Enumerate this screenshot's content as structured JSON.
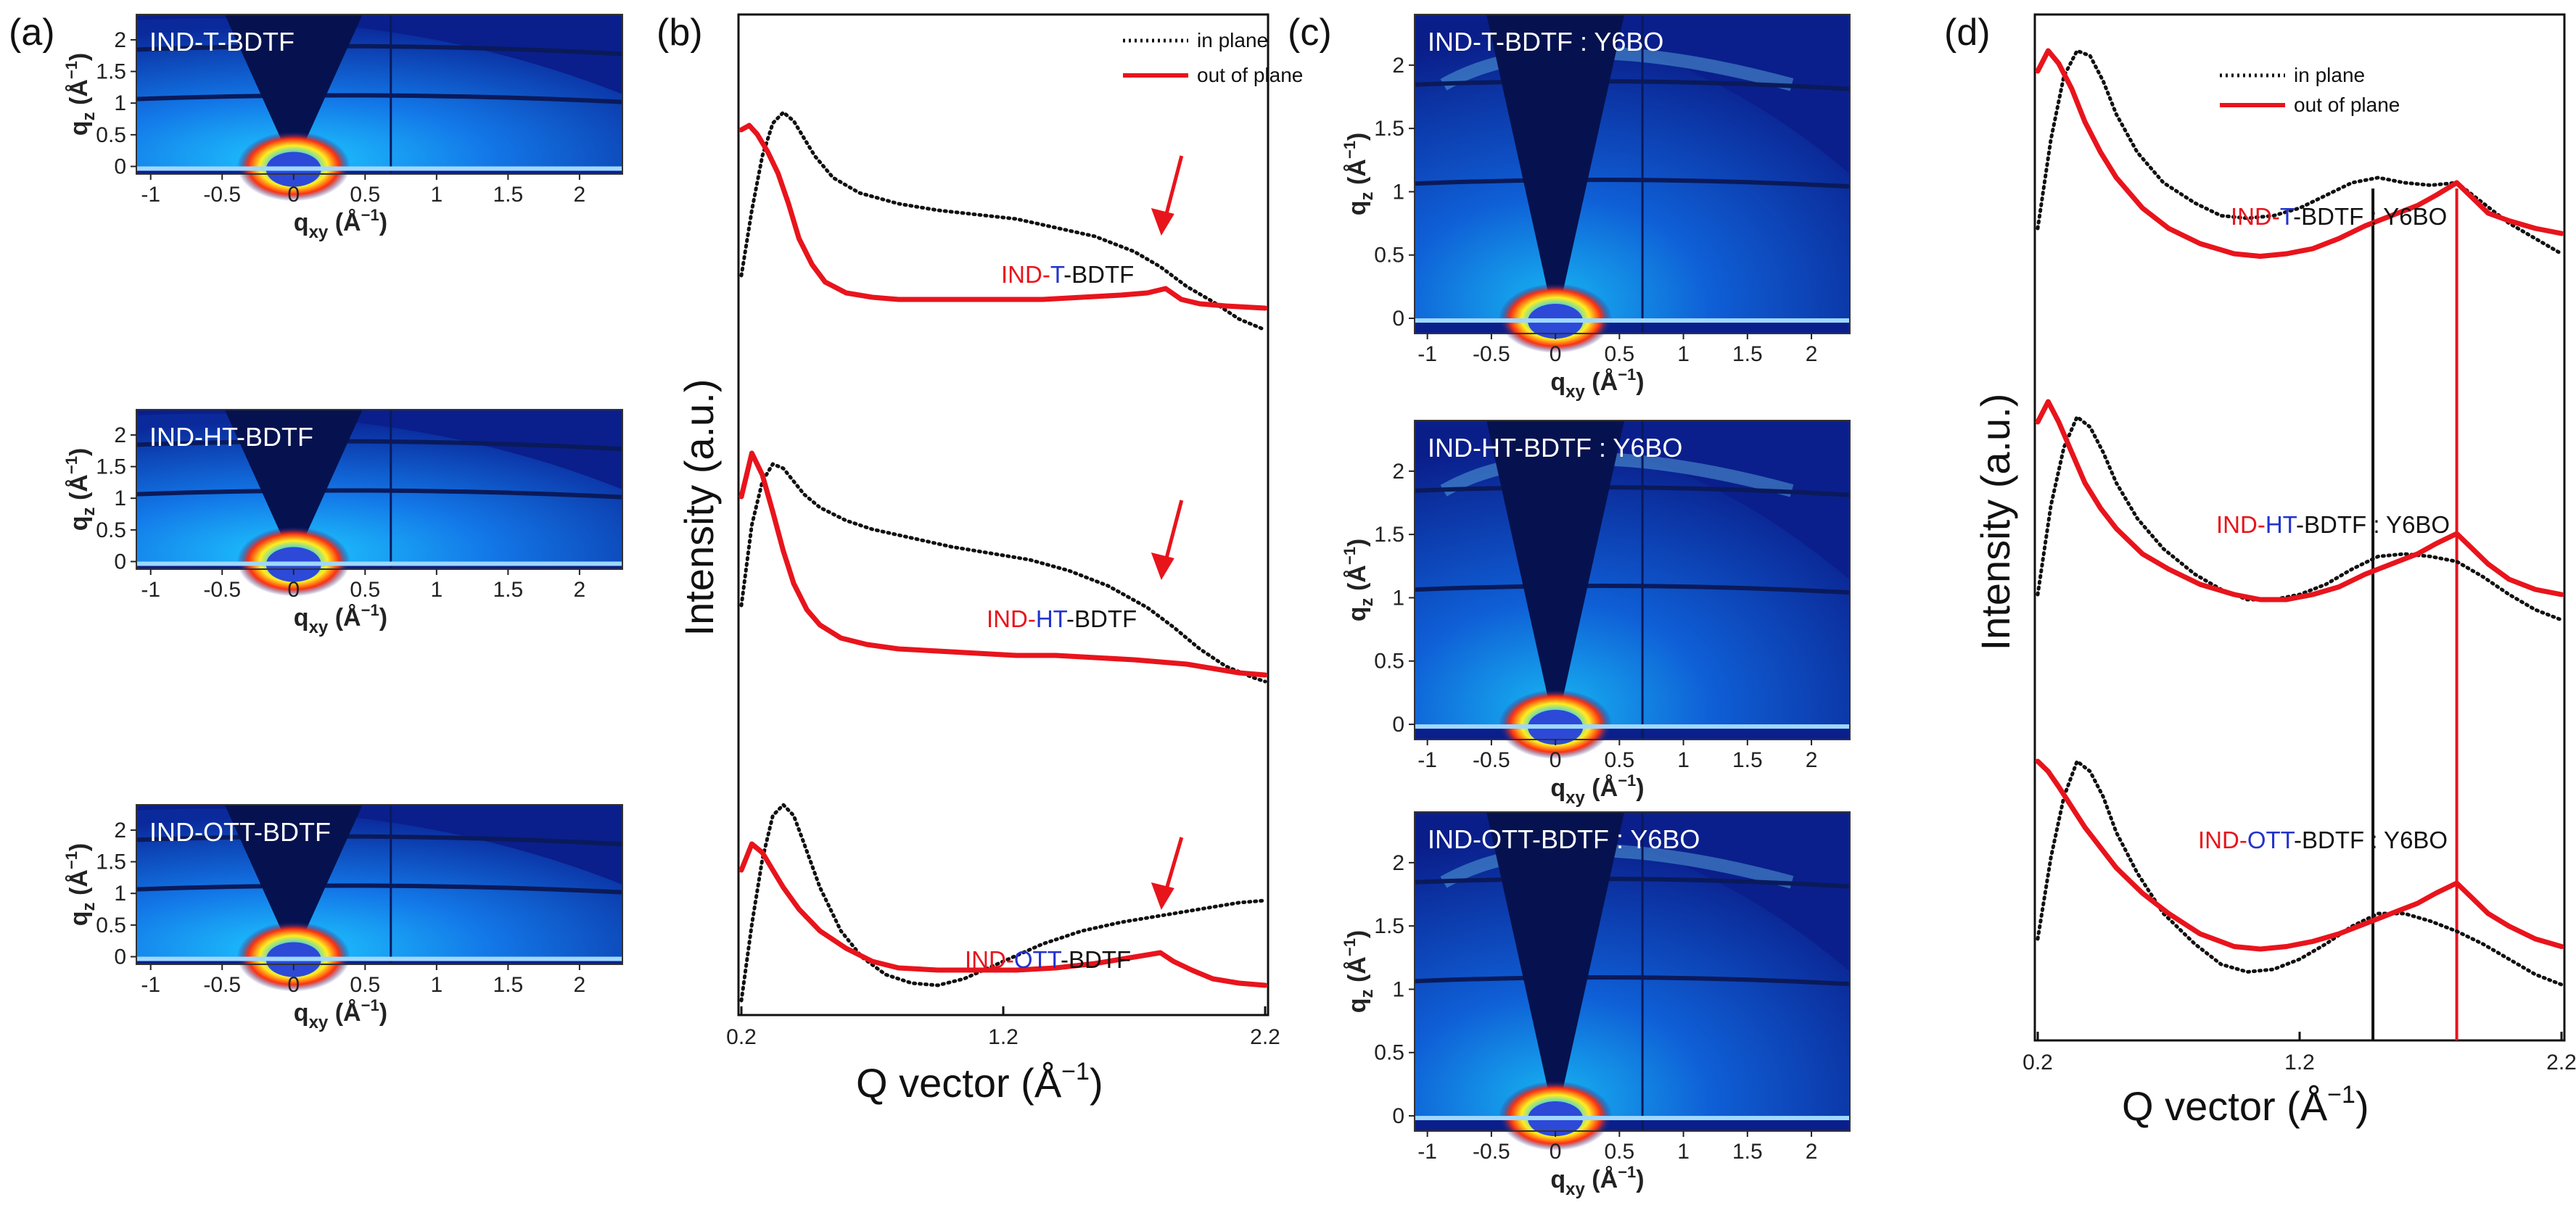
{
  "figure": {
    "panel_labels": [
      "(a)",
      "(b)",
      "(c)",
      "(d)"
    ]
  },
  "colors": {
    "in_plane": "#111111",
    "out_of_plane": "#e8141c",
    "label_red": "#e8141c",
    "label_blue": "#2233cc",
    "label_black": "#111111",
    "map_background": "#0a1f8c",
    "map_shadow": "#06124f"
  },
  "chart_data": [
    {
      "panel": "(a)",
      "type": "heatmap",
      "xlabel_main": "q",
      "xlabel_sub": "xy",
      "xlabel_unit": "(Å",
      "xlabel_unit_exp": "−1",
      "xlabel_unit_close": ")",
      "ylabel_main": "q",
      "ylabel_sub": "z",
      "ylabel_unit": "(Å",
      "ylabel_unit_exp": "−1",
      "ylabel_unit_close": ")",
      "xlim": [
        -1.1,
        2.3
      ],
      "ylim": [
        -0.12,
        2.4
      ],
      "x_ticks": [
        "-1",
        "-0.5",
        "0",
        "0.5",
        "1",
        "1.5",
        "2"
      ],
      "y_ticks": [
        "0",
        "0.5",
        "1",
        "1.5",
        "2"
      ],
      "maps": [
        {
          "title": "IND-T-BDTF"
        },
        {
          "title": "IND-HT-BDTF"
        },
        {
          "title": "IND-OTT-BDTF"
        }
      ]
    },
    {
      "panel": "(b)",
      "type": "line",
      "xlabel": "Q vector (Å",
      "xlabel_exp": "−1",
      "xlabel_close": ")",
      "ylabel": "Intensity (a.u.)",
      "x_ticks": [
        "0.2",
        "1.2",
        "2.2"
      ],
      "xlim": [
        0.2,
        2.2
      ],
      "legend": {
        "position": "top-right",
        "entries": [
          "in plane",
          "out of plane"
        ]
      },
      "curve_labels": [
        [
          {
            "text": "IND-",
            "color": "red"
          },
          {
            "text": "T",
            "color": "blue"
          },
          {
            "text": "-BDTF",
            "color": "black"
          }
        ],
        [
          {
            "text": "IND-",
            "color": "red"
          },
          {
            "text": "HT",
            "color": "blue"
          },
          {
            "text": "-BDTF",
            "color": "black"
          }
        ],
        [
          {
            "text": "IND-",
            "color": "red"
          },
          {
            "text": "OTT",
            "color": "blue"
          },
          {
            "text": "-BDTF",
            "color": "black"
          }
        ]
      ],
      "arrow_q": 1.82,
      "series": [
        {
          "name": "in plane",
          "group": 0,
          "style": "dotted",
          "x": [
            0.2,
            0.24,
            0.28,
            0.32,
            0.36,
            0.4,
            0.44,
            0.48,
            0.55,
            0.65,
            0.8,
            0.95,
            1.1,
            1.25,
            1.4,
            1.55,
            1.7,
            1.8,
            1.9,
            2.0,
            2.1,
            2.2
          ],
          "y": [
            0.25,
            0.55,
            0.8,
            0.95,
            1.0,
            0.96,
            0.88,
            0.8,
            0.7,
            0.63,
            0.58,
            0.55,
            0.53,
            0.51,
            0.47,
            0.43,
            0.36,
            0.29,
            0.2,
            0.13,
            0.05,
            0.0
          ]
        },
        {
          "name": "out of plane",
          "group": 0,
          "style": "solid",
          "x": [
            0.2,
            0.23,
            0.26,
            0.3,
            0.34,
            0.38,
            0.42,
            0.47,
            0.52,
            0.6,
            0.7,
            0.8,
            0.9,
            1.05,
            1.2,
            1.35,
            1.5,
            1.65,
            1.75,
            1.82,
            1.88,
            1.95,
            2.05,
            2.2
          ],
          "y": [
            0.92,
            0.94,
            0.9,
            0.82,
            0.72,
            0.58,
            0.42,
            0.3,
            0.22,
            0.17,
            0.15,
            0.14,
            0.14,
            0.14,
            0.14,
            0.14,
            0.15,
            0.16,
            0.17,
            0.19,
            0.14,
            0.12,
            0.11,
            0.1
          ]
        },
        {
          "name": "in plane",
          "group": 1,
          "style": "dotted",
          "x": [
            0.2,
            0.24,
            0.28,
            0.32,
            0.36,
            0.4,
            0.44,
            0.5,
            0.6,
            0.7,
            0.85,
            1.0,
            1.15,
            1.3,
            1.45,
            1.6,
            1.75,
            1.85,
            1.95,
            2.05,
            2.15,
            2.2
          ],
          "y": [
            0.35,
            0.72,
            0.92,
            1.0,
            0.98,
            0.92,
            0.86,
            0.8,
            0.74,
            0.7,
            0.66,
            0.62,
            0.59,
            0.56,
            0.51,
            0.44,
            0.34,
            0.25,
            0.15,
            0.07,
            0.02,
            0.0
          ]
        },
        {
          "name": "out of plane",
          "group": 1,
          "style": "solid",
          "x": [
            0.2,
            0.24,
            0.28,
            0.32,
            0.36,
            0.4,
            0.45,
            0.5,
            0.58,
            0.68,
            0.8,
            0.95,
            1.1,
            1.25,
            1.4,
            1.55,
            1.7,
            1.8,
            1.9,
            2.0,
            2.1,
            2.2
          ],
          "y": [
            0.85,
            1.05,
            0.95,
            0.78,
            0.6,
            0.45,
            0.33,
            0.26,
            0.2,
            0.17,
            0.15,
            0.14,
            0.13,
            0.12,
            0.12,
            0.11,
            0.1,
            0.09,
            0.08,
            0.06,
            0.04,
            0.03
          ]
        },
        {
          "name": "in plane",
          "group": 2,
          "style": "dotted",
          "x": [
            0.2,
            0.24,
            0.28,
            0.32,
            0.36,
            0.4,
            0.44,
            0.5,
            0.58,
            0.66,
            0.75,
            0.85,
            0.95,
            1.05,
            1.2,
            1.35,
            1.5,
            1.65,
            1.8,
            1.95,
            2.1,
            2.2
          ],
          "y": [
            0.1,
            0.45,
            0.75,
            0.95,
            1.0,
            0.95,
            0.82,
            0.62,
            0.42,
            0.3,
            0.22,
            0.18,
            0.17,
            0.2,
            0.28,
            0.36,
            0.42,
            0.46,
            0.49,
            0.52,
            0.55,
            0.56
          ]
        },
        {
          "name": "out of plane",
          "group": 2,
          "style": "solid",
          "x": [
            0.2,
            0.24,
            0.28,
            0.32,
            0.36,
            0.42,
            0.5,
            0.6,
            0.7,
            0.8,
            0.95,
            1.1,
            1.25,
            1.4,
            1.55,
            1.7,
            1.8,
            1.85,
            1.92,
            2.0,
            2.1,
            2.2
          ],
          "y": [
            0.7,
            0.82,
            0.78,
            0.7,
            0.62,
            0.52,
            0.42,
            0.34,
            0.28,
            0.25,
            0.24,
            0.24,
            0.24,
            0.25,
            0.27,
            0.3,
            0.32,
            0.28,
            0.24,
            0.2,
            0.18,
            0.17
          ]
        }
      ]
    },
    {
      "panel": "(c)",
      "type": "heatmap",
      "xlabel_main": "q",
      "xlabel_sub": "xy",
      "xlabel_unit": "(Å",
      "xlabel_unit_exp": "−1",
      "xlabel_unit_close": ")",
      "ylabel_main": "q",
      "ylabel_sub": "z",
      "ylabel_unit": "(Å",
      "ylabel_unit_exp": "−1",
      "ylabel_unit_close": ")",
      "xlim": [
        -1.1,
        2.3
      ],
      "ylim": [
        -0.12,
        2.4
      ],
      "x_ticks": [
        "-1",
        "-0.5",
        "0",
        "0.5",
        "1",
        "1.5",
        "2"
      ],
      "y_ticks": [
        "0",
        "0.5",
        "1",
        "1.5",
        "2"
      ],
      "maps": [
        {
          "title": "IND-T-BDTF : Y6BO"
        },
        {
          "title": "IND-HT-BDTF : Y6BO"
        },
        {
          "title": "IND-OTT-BDTF : Y6BO"
        }
      ]
    },
    {
      "panel": "(d)",
      "type": "line",
      "xlabel": "Q vector (Å",
      "xlabel_exp": "−1",
      "xlabel_close": ")",
      "ylabel": "Intensity (a.u.)",
      "x_ticks": [
        "0.2",
        "1.2",
        "2.2"
      ],
      "xlim": [
        0.2,
        2.2
      ],
      "legend": {
        "position": "top-right",
        "entries": [
          "in plane",
          "out of plane"
        ]
      },
      "vlines": [
        {
          "x": 1.48,
          "color": "#111111"
        },
        {
          "x": 1.8,
          "color": "#e8141c"
        }
      ],
      "curve_labels": [
        [
          {
            "text": "IND-",
            "color": "red"
          },
          {
            "text": "T",
            "color": "blue"
          },
          {
            "text": "-BDTF : Y6BO",
            "color": "black"
          }
        ],
        [
          {
            "text": "IND-",
            "color": "red"
          },
          {
            "text": "HT",
            "color": "blue"
          },
          {
            "text": "-BDTF : Y6BO",
            "color": "black"
          }
        ],
        [
          {
            "text": "IND-",
            "color": "red"
          },
          {
            "text": "OTT",
            "color": "blue"
          },
          {
            "text": "-BDTF : Y6BO",
            "color": "black"
          }
        ]
      ],
      "series": [
        {
          "name": "in plane",
          "group": 0,
          "style": "dotted",
          "x": [
            0.2,
            0.25,
            0.3,
            0.35,
            0.4,
            0.45,
            0.5,
            0.58,
            0.68,
            0.8,
            0.9,
            1.0,
            1.1,
            1.2,
            1.3,
            1.4,
            1.5,
            1.6,
            1.7,
            1.8,
            1.9,
            2.0,
            2.1,
            2.2
          ],
          "y": [
            0.3,
            0.65,
            0.9,
            1.0,
            0.98,
            0.88,
            0.75,
            0.6,
            0.48,
            0.4,
            0.35,
            0.34,
            0.35,
            0.38,
            0.43,
            0.48,
            0.5,
            0.48,
            0.47,
            0.48,
            0.4,
            0.32,
            0.26,
            0.2
          ]
        },
        {
          "name": "out of plane",
          "group": 0,
          "style": "solid",
          "x": [
            0.2,
            0.24,
            0.28,
            0.33,
            0.38,
            0.44,
            0.5,
            0.6,
            0.7,
            0.82,
            0.95,
            1.05,
            1.15,
            1.25,
            1.35,
            1.45,
            1.55,
            1.65,
            1.72,
            1.8,
            1.86,
            1.92,
            2.0,
            2.1,
            2.2
          ],
          "y": [
            0.92,
            1.0,
            0.95,
            0.85,
            0.72,
            0.6,
            0.5,
            0.38,
            0.3,
            0.24,
            0.2,
            0.19,
            0.2,
            0.22,
            0.26,
            0.31,
            0.35,
            0.39,
            0.43,
            0.48,
            0.42,
            0.36,
            0.33,
            0.3,
            0.28
          ]
        },
        {
          "name": "in plane",
          "group": 1,
          "style": "dotted",
          "x": [
            0.2,
            0.25,
            0.3,
            0.35,
            0.4,
            0.45,
            0.5,
            0.58,
            0.68,
            0.8,
            0.9,
            1.0,
            1.1,
            1.2,
            1.3,
            1.4,
            1.5,
            1.6,
            1.7,
            1.8,
            1.9,
            2.0,
            2.1,
            2.2
          ],
          "y": [
            0.3,
            0.65,
            0.88,
            1.0,
            0.96,
            0.86,
            0.74,
            0.6,
            0.48,
            0.38,
            0.32,
            0.28,
            0.28,
            0.3,
            0.34,
            0.4,
            0.45,
            0.46,
            0.45,
            0.43,
            0.37,
            0.3,
            0.24,
            0.2
          ]
        },
        {
          "name": "out of plane",
          "group": 1,
          "style": "solid",
          "x": [
            0.2,
            0.24,
            0.28,
            0.33,
            0.38,
            0.44,
            0.5,
            0.6,
            0.7,
            0.82,
            0.95,
            1.05,
            1.15,
            1.25,
            1.35,
            1.45,
            1.55,
            1.65,
            1.72,
            1.8,
            1.86,
            1.92,
            2.0,
            2.1,
            2.2
          ],
          "y": [
            0.98,
            1.06,
            0.98,
            0.86,
            0.74,
            0.64,
            0.56,
            0.46,
            0.4,
            0.34,
            0.3,
            0.28,
            0.28,
            0.3,
            0.33,
            0.38,
            0.42,
            0.46,
            0.5,
            0.54,
            0.48,
            0.42,
            0.36,
            0.32,
            0.3
          ]
        },
        {
          "name": "in plane",
          "group": 2,
          "style": "dotted",
          "x": [
            0.2,
            0.25,
            0.3,
            0.35,
            0.4,
            0.45,
            0.5,
            0.58,
            0.68,
            0.8,
            0.9,
            1.0,
            1.1,
            1.2,
            1.3,
            1.4,
            1.5,
            1.6,
            1.7,
            1.8,
            1.9,
            2.0,
            2.1,
            2.2
          ],
          "y": [
            0.3,
            0.62,
            0.86,
            1.0,
            0.96,
            0.86,
            0.72,
            0.56,
            0.4,
            0.28,
            0.2,
            0.17,
            0.18,
            0.22,
            0.28,
            0.35,
            0.4,
            0.4,
            0.37,
            0.33,
            0.28,
            0.22,
            0.16,
            0.12
          ]
        },
        {
          "name": "out of plane",
          "group": 2,
          "style": "solid",
          "x": [
            0.2,
            0.24,
            0.28,
            0.33,
            0.38,
            0.44,
            0.5,
            0.6,
            0.7,
            0.82,
            0.95,
            1.05,
            1.15,
            1.25,
            1.35,
            1.45,
            1.55,
            1.65,
            1.72,
            1.8,
            1.86,
            1.92,
            2.0,
            2.1,
            2.2
          ],
          "y": [
            1.0,
            0.96,
            0.9,
            0.82,
            0.74,
            0.66,
            0.58,
            0.48,
            0.4,
            0.32,
            0.27,
            0.26,
            0.27,
            0.29,
            0.32,
            0.36,
            0.4,
            0.44,
            0.48,
            0.52,
            0.46,
            0.4,
            0.35,
            0.3,
            0.27
          ]
        }
      ]
    }
  ]
}
